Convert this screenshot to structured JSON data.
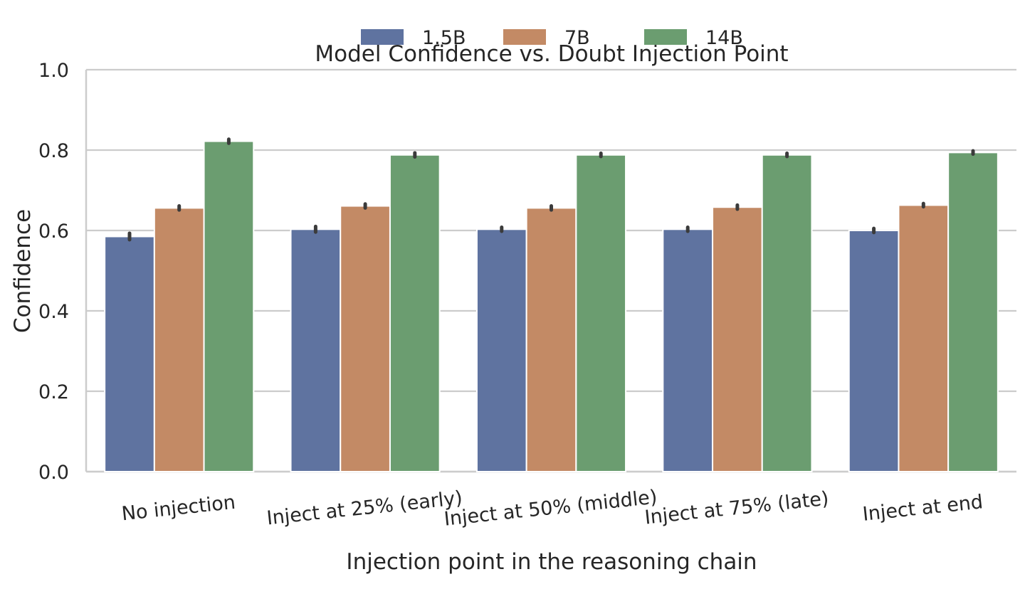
{
  "chart_data": {
    "type": "bar",
    "title": "Model Confidence vs. Doubt Injection Point",
    "xlabel": "Injection point in the reasoning chain",
    "ylabel": "Confidence",
    "categories": [
      "No injection",
      "Inject at 25% (early)",
      "Inject at 50% (middle)",
      "Inject at 75% (late)",
      "Inject at end"
    ],
    "ylim": [
      0,
      1.0
    ],
    "yticks": [
      "0.0",
      "0.2",
      "0.4",
      "0.6",
      "0.8",
      "1.0"
    ],
    "grid": "horizontal",
    "legend_position": "top-center",
    "series": [
      {
        "name": "1.5B",
        "color": "#5f73a0",
        "values": [
          0.585,
          0.603,
          0.603,
          0.603,
          0.6
        ],
        "error": [
          0.008,
          0.007,
          0.005,
          0.005,
          0.005
        ]
      },
      {
        "name": "7B",
        "color": "#c38a65",
        "values": [
          0.656,
          0.661,
          0.656,
          0.658,
          0.663
        ],
        "error": [
          0.005,
          0.005,
          0.005,
          0.005,
          0.004
        ]
      },
      {
        "name": "14B",
        "color": "#6b9d70",
        "values": [
          0.822,
          0.788,
          0.788,
          0.788,
          0.794
        ],
        "error": [
          0.005,
          0.005,
          0.004,
          0.004,
          0.004
        ]
      }
    ]
  }
}
